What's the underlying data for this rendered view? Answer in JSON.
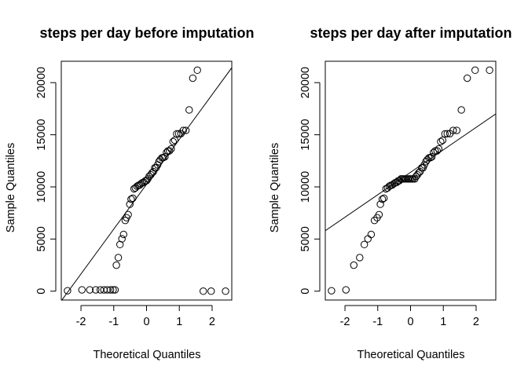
{
  "chart_data": [
    {
      "type": "scatter",
      "title": "steps per day before imputation",
      "xlabel": "Theoretical Quantiles",
      "ylabel": "Sample Quantiles",
      "xlim": [
        -2.6,
        2.6
      ],
      "ylim": [
        -850,
        22050
      ],
      "xticks": [
        -2,
        -1,
        0,
        1,
        2
      ],
      "xtick_labels": [
        "-2",
        "-1",
        "0",
        "1",
        "2"
      ],
      "yticks": [
        0,
        5000,
        10000,
        15000,
        20000
      ],
      "ytick_labels": [
        "0",
        "5000",
        "10000",
        "15000",
        "20000"
      ],
      "grid": false,
      "points_x": [
        -2.41,
        -1.97,
        -1.73,
        -1.55,
        -1.41,
        -1.3,
        -1.2,
        -1.1,
        -1.02,
        -0.96,
        -0.92,
        -0.86,
        -0.81,
        -0.75,
        -0.7,
        -0.65,
        -0.61,
        -0.56,
        -0.51,
        -0.47,
        -0.42,
        -0.38,
        -0.34,
        -0.29,
        -0.25,
        -0.21,
        -0.17,
        -0.13,
        -0.08,
        -0.04,
        0.0,
        0.04,
        0.08,
        0.13,
        0.17,
        0.21,
        0.25,
        0.29,
        0.34,
        0.38,
        0.42,
        0.47,
        0.51,
        0.56,
        0.61,
        0.65,
        0.7,
        0.75,
        0.81,
        0.86,
        0.92,
        0.98,
        1.05,
        1.12,
        1.2,
        1.3,
        1.41,
        1.55,
        1.73,
        1.97,
        2.41
      ],
      "points_y": [
        41,
        126,
        126,
        126,
        126,
        126,
        126,
        126,
        126,
        126,
        2492,
        3219,
        4472,
        5018,
        5441,
        6778,
        7047,
        7336,
        8334,
        8821,
        8918,
        9819,
        9900,
        10056,
        10139,
        10183,
        10304,
        10395,
        10439,
        10571,
        10600,
        10765,
        11015,
        11162,
        11352,
        11458,
        11829,
        11834,
        12116,
        12426,
        12608,
        12787,
        12811,
        12883,
        13294,
        13452,
        13460,
        13646,
        14339,
        14478,
        15084,
        15098,
        15110,
        15414,
        15420,
        17382,
        20427,
        21194,
        0,
        0,
        0
      ],
      "ref_line": [
        [
          -2.6,
          -930
        ],
        [
          2.6,
          21430
        ]
      ]
    },
    {
      "type": "scatter",
      "title": "steps per day after imputation",
      "xlabel": "Theoretical Quantiles",
      "ylabel": "Sample Quantiles",
      "xlim": [
        -2.6,
        2.6
      ],
      "ylim": [
        -850,
        22050
      ],
      "xticks": [
        -2,
        -1,
        0,
        1,
        2
      ],
      "xtick_labels": [
        "-2",
        "-1",
        "0",
        "1",
        "2"
      ],
      "yticks": [
        0,
        5000,
        10000,
        15000,
        20000
      ],
      "ytick_labels": [
        "0",
        "5000",
        "10000",
        "15000",
        "20000"
      ],
      "grid": false,
      "points_x": [
        -2.41,
        -1.97,
        -1.73,
        -1.55,
        -1.41,
        -1.3,
        -1.2,
        -1.1,
        -1.02,
        -0.96,
        -0.92,
        -0.86,
        -0.81,
        -0.75,
        -0.7,
        -0.65,
        -0.61,
        -0.56,
        -0.51,
        -0.47,
        -0.42,
        -0.38,
        -0.34,
        -0.29,
        -0.25,
        -0.21,
        -0.17,
        -0.13,
        -0.08,
        -0.04,
        0.0,
        0.04,
        0.08,
        0.13,
        0.17,
        0.21,
        0.25,
        0.29,
        0.34,
        0.38,
        0.42,
        0.47,
        0.51,
        0.56,
        0.61,
        0.65,
        0.7,
        0.75,
        0.81,
        0.86,
        0.92,
        0.98,
        1.05,
        1.12,
        1.2,
        1.3,
        1.41,
        1.55,
        1.73,
        1.97,
        2.41
      ],
      "points_y": [
        41,
        126,
        2492,
        3219,
        4472,
        5018,
        5441,
        6778,
        7047,
        7336,
        8334,
        8821,
        8918,
        9819,
        9900,
        10056,
        10139,
        10183,
        10304,
        10395,
        10439,
        10571,
        10600,
        10766,
        10766,
        10766,
        10766,
        10766,
        10766,
        10766,
        10766,
        10766,
        10766,
        10765,
        11015,
        11162,
        11352,
        11458,
        11829,
        11834,
        12116,
        12426,
        12608,
        12787,
        12811,
        12883,
        13294,
        13452,
        13460,
        13646,
        14339,
        14478,
        15084,
        15098,
        15110,
        15414,
        15420,
        17382,
        20427,
        21194,
        21194
      ],
      "ref_line": [
        [
          -2.6,
          5800
        ],
        [
          2.6,
          17000
        ]
      ]
    }
  ]
}
